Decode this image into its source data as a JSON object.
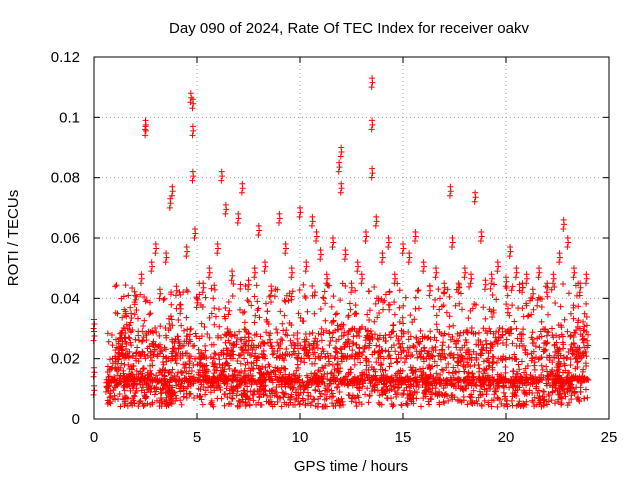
{
  "chart_data": {
    "type": "scatter",
    "title": "Day 090 of 2024, Rate Of TEC Index for receiver oakv",
    "xlabel": "GPS time / hours",
    "ylabel": "ROTI / TECUs",
    "xlim": [
      0,
      25
    ],
    "ylim": [
      0,
      0.12
    ],
    "x_ticks": [
      0,
      5,
      10,
      15,
      20,
      25
    ],
    "x_tick_labels": [
      "0",
      "5",
      "10",
      "15",
      "20",
      "25"
    ],
    "y_ticks": [
      0,
      0.02,
      0.04,
      0.06,
      0.08,
      0.1,
      0.12
    ],
    "y_tick_labels": [
      "0",
      "0.02",
      "0.04",
      "0.06",
      "0.08",
      "0.1",
      "0.12"
    ],
    "grid": true,
    "marker": "plus",
    "series": [
      {
        "name": "ROTI",
        "color": "#ff0000",
        "x": [
          0.0,
          0.0,
          0.0,
          0.0,
          0.6,
          0.9,
          1.2,
          1.5,
          1.8,
          2.0,
          2.3,
          2.5,
          2.5,
          2.8,
          3.0,
          3.2,
          3.5,
          3.7,
          3.8,
          4.0,
          4.2,
          4.5,
          4.7,
          4.8,
          4.8,
          4.8,
          4.9,
          5.0,
          5.3,
          5.6,
          6.0,
          6.2,
          6.4,
          6.7,
          7.0,
          7.2,
          7.5,
          7.8,
          8.0,
          8.3,
          8.6,
          9.0,
          9.3,
          9.6,
          10.0,
          10.3,
          10.6,
          10.8,
          11.0,
          11.3,
          11.6,
          11.9,
          12.0,
          12.0,
          12.2,
          12.5,
          12.8,
          13.0,
          13.2,
          13.5,
          13.5,
          13.5,
          13.7,
          14.0,
          14.3,
          14.6,
          15.0,
          15.3,
          15.6,
          16.0,
          16.3,
          16.6,
          17.0,
          17.3,
          17.4,
          17.7,
          18.0,
          18.3,
          18.5,
          18.8,
          19.0,
          19.3,
          19.6,
          20.0,
          20.2,
          20.5,
          20.8,
          21.0,
          21.3,
          21.6,
          22.0,
          22.3,
          22.6,
          22.8,
          23.0,
          23.3,
          23.6,
          23.9
        ],
        "y": [
          0.033,
          0.029,
          0.017,
          0.011,
          0.012,
          0.02,
          0.025,
          0.03,
          0.035,
          0.041,
          0.048,
          0.099,
          0.097,
          0.052,
          0.058,
          0.043,
          0.055,
          0.073,
          0.077,
          0.044,
          0.038,
          0.057,
          0.108,
          0.106,
          0.097,
          0.082,
          0.063,
          0.04,
          0.045,
          0.05,
          0.058,
          0.082,
          0.071,
          0.049,
          0.068,
          0.078,
          0.046,
          0.05,
          0.064,
          0.052,
          0.044,
          0.068,
          0.058,
          0.05,
          0.07,
          0.052,
          0.067,
          0.062,
          0.056,
          0.048,
          0.06,
          0.085,
          0.09,
          0.078,
          0.056,
          0.045,
          0.052,
          0.048,
          0.062,
          0.113,
          0.099,
          0.083,
          0.067,
          0.055,
          0.06,
          0.048,
          0.058,
          0.055,
          0.062,
          0.052,
          0.044,
          0.05,
          0.045,
          0.077,
          0.06,
          0.045,
          0.05,
          0.048,
          0.075,
          0.062,
          0.046,
          0.048,
          0.052,
          0.047,
          0.057,
          0.05,
          0.045,
          0.048,
          0.043,
          0.05,
          0.045,
          0.048,
          0.055,
          0.066,
          0.06,
          0.05,
          0.045,
          0.048
        ]
      }
    ],
    "dense_band": {
      "description": "dense cloud of points from about 0.6 to 24 hours",
      "x_range": [
        0.6,
        24.0
      ],
      "y_range": [
        0.004,
        0.03
      ],
      "typical": 0.013
    }
  }
}
